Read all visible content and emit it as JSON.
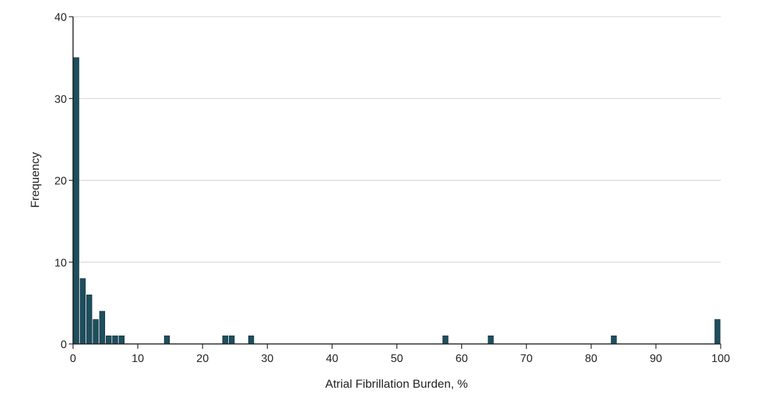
{
  "chart_data": {
    "type": "bar",
    "title": "",
    "xlabel": "Atrial Fibrillation Burden, %",
    "ylabel": "Frequency",
    "xlim": [
      0,
      100
    ],
    "ylim": [
      0,
      40
    ],
    "x_ticks": [
      "0",
      "10",
      "20",
      "30",
      "40",
      "50",
      "60",
      "70",
      "80",
      "90",
      "100"
    ],
    "y_ticks": [
      "0",
      "10",
      "20",
      "30",
      "40"
    ],
    "grid": "horizontal",
    "bar_color": "#1d4f5e",
    "bin_width": 1,
    "bins": [
      {
        "x": 0,
        "count": 35
      },
      {
        "x": 1,
        "count": 8
      },
      {
        "x": 2,
        "count": 6
      },
      {
        "x": 3,
        "count": 3
      },
      {
        "x": 4,
        "count": 4
      },
      {
        "x": 5,
        "count": 1
      },
      {
        "x": 6,
        "count": 1
      },
      {
        "x": 7,
        "count": 1
      },
      {
        "x": 14,
        "count": 1
      },
      {
        "x": 23,
        "count": 1
      },
      {
        "x": 24,
        "count": 1
      },
      {
        "x": 27,
        "count": 1
      },
      {
        "x": 57,
        "count": 1
      },
      {
        "x": 64,
        "count": 1
      },
      {
        "x": 83,
        "count": 1
      },
      {
        "x": 99,
        "count": 3
      }
    ]
  }
}
